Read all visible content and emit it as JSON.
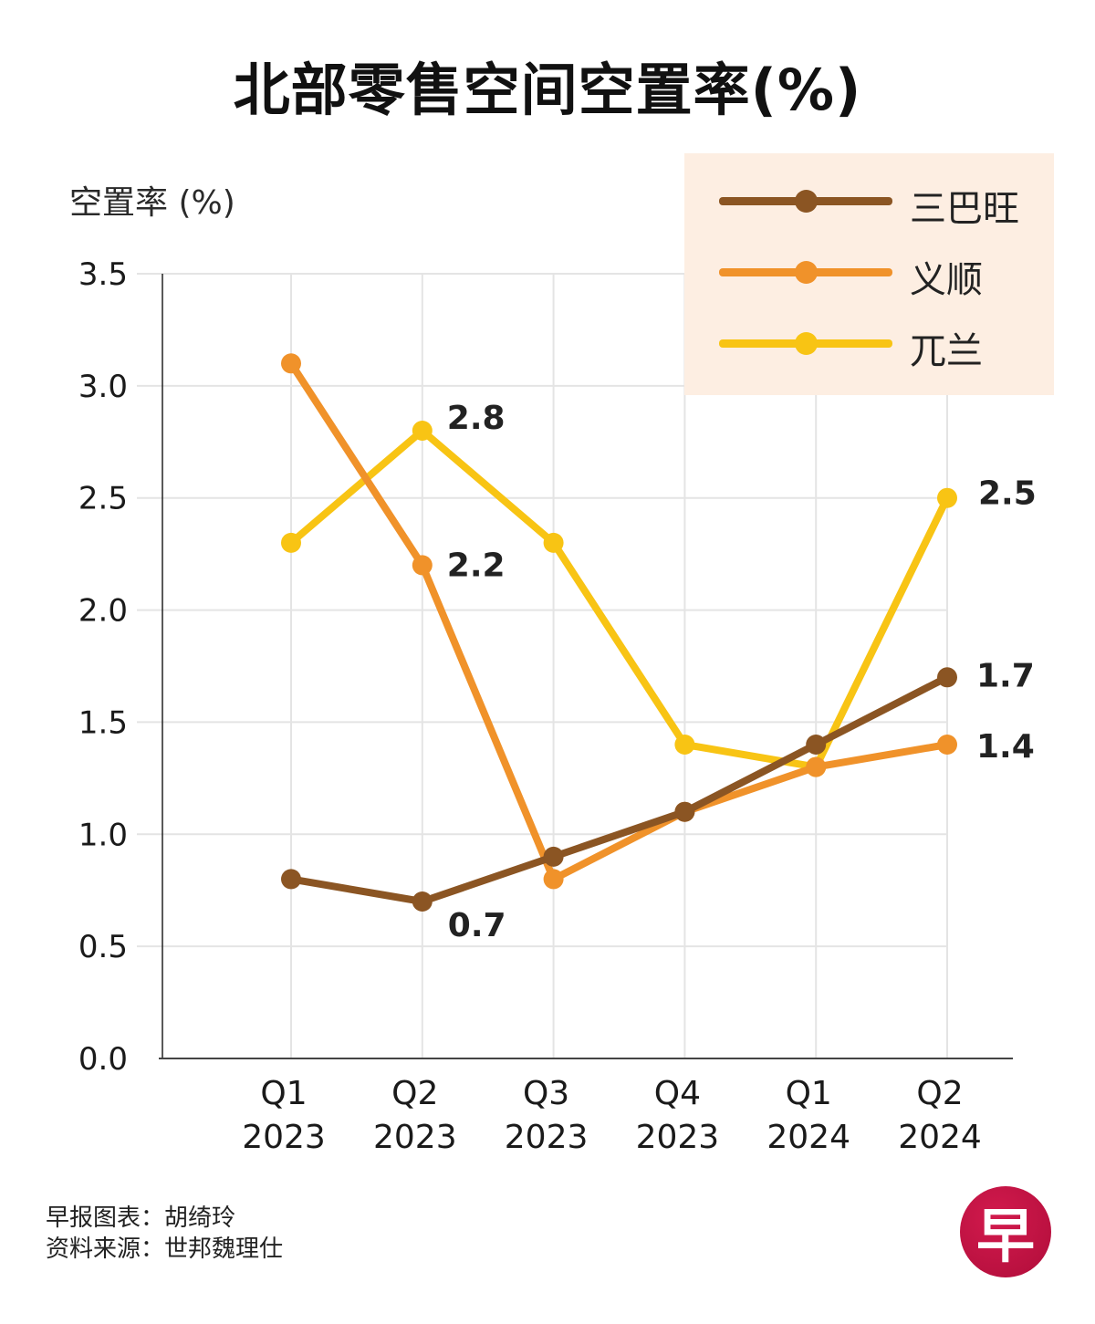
{
  "title": "北部零售空间空置率(%)",
  "footer": {
    "credit": "早报图表：胡绮玲",
    "source": "资料来源：世邦魏理仕"
  },
  "logo": {
    "glyph": "早",
    "color": "#c8113f",
    "name": "lianhe-zaobao-logo"
  },
  "chart_data": {
    "type": "line",
    "title": "北部零售空间空置率(%)",
    "xlabel": "",
    "ylabel": "空置率 (%)",
    "categories": [
      [
        "Q1",
        "2023"
      ],
      [
        "Q2",
        "2023"
      ],
      [
        "Q3",
        "2023"
      ],
      [
        "Q4",
        "2023"
      ],
      [
        "Q1",
        "2024"
      ],
      [
        "Q2",
        "2024"
      ]
    ],
    "ylim": [
      0,
      3.5
    ],
    "yticks": [
      "0.0",
      "0.5",
      "1.0",
      "1.5",
      "2.0",
      "2.5",
      "3.0",
      "3.5"
    ],
    "grid": true,
    "legend_position": "top-right",
    "series": [
      {
        "name": "三巴旺",
        "color": "#8b5523",
        "values": [
          0.8,
          0.7,
          0.9,
          1.1,
          1.4,
          1.7
        ],
        "labels": [
          null,
          "0.7",
          null,
          null,
          null,
          "1.7"
        ]
      },
      {
        "name": "义顺",
        "color": "#f0922a",
        "values": [
          3.1,
          2.2,
          0.8,
          1.1,
          1.3,
          1.4
        ],
        "labels": [
          null,
          "2.2",
          null,
          null,
          null,
          "1.4"
        ]
      },
      {
        "name": "兀兰",
        "color": "#f8c414",
        "values": [
          2.3,
          2.8,
          2.3,
          1.4,
          1.3,
          2.5
        ],
        "labels": [
          null,
          "2.8",
          null,
          null,
          null,
          "2.5"
        ]
      }
    ]
  }
}
